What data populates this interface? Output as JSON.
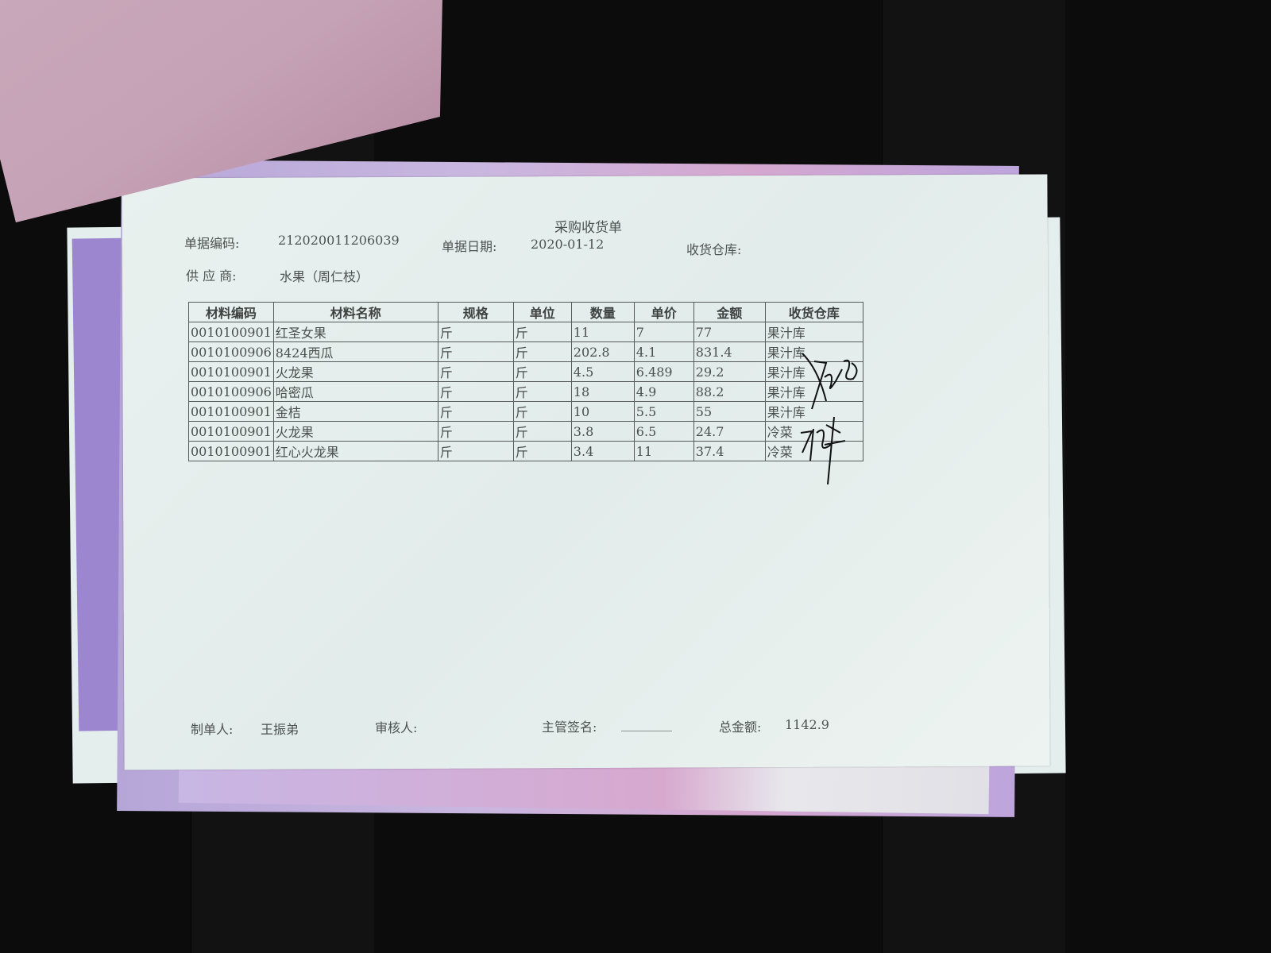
{
  "document": {
    "title": "采购收货单",
    "doc_number_label": "单据编码:",
    "doc_number": "212020011206039",
    "doc_date_label": "单据日期:",
    "doc_date": "2020-01-12",
    "warehouse_label": "收货仓库:",
    "supplier_label": "供 应 商:",
    "supplier": "水果（周仁枝）",
    "table": {
      "headers": [
        "材料编码",
        "材料名称",
        "规格",
        "单位",
        "数量",
        "单价",
        "金额",
        "收货仓库"
      ],
      "rows": [
        [
          "0010100901",
          "红圣女果",
          "斤",
          "斤",
          "11",
          "7",
          "77",
          "果汁库"
        ],
        [
          "0010100906",
          "8424西瓜",
          "斤",
          "斤",
          "202.8",
          "4.1",
          "831.4",
          "果汁库"
        ],
        [
          "0010100901",
          "火龙果",
          "斤",
          "斤",
          "4.5",
          "6.489",
          "29.2",
          "果汁库"
        ],
        [
          "0010100906",
          "哈密瓜",
          "斤",
          "斤",
          "18",
          "4.9",
          "88.2",
          "果汁库"
        ],
        [
          "0010100901",
          "金桔",
          "斤",
          "斤",
          "10",
          "5.5",
          "55",
          "果汁库"
        ],
        [
          "0010100901",
          "火龙果",
          "斤",
          "斤",
          "3.8",
          "6.5",
          "24.7",
          "冷菜"
        ],
        [
          "0010100901",
          "红心火龙果",
          "斤",
          "斤",
          "3.4",
          "11",
          "37.4",
          "冷菜"
        ]
      ]
    },
    "footer": {
      "maker_label": "制单人:",
      "maker": "王振弟",
      "reviewer_label": "审核人:",
      "supervisor_label": "主管签名:",
      "supervisor_blank": "________",
      "total_label": "总金额:",
      "total": "1142.9"
    }
  }
}
